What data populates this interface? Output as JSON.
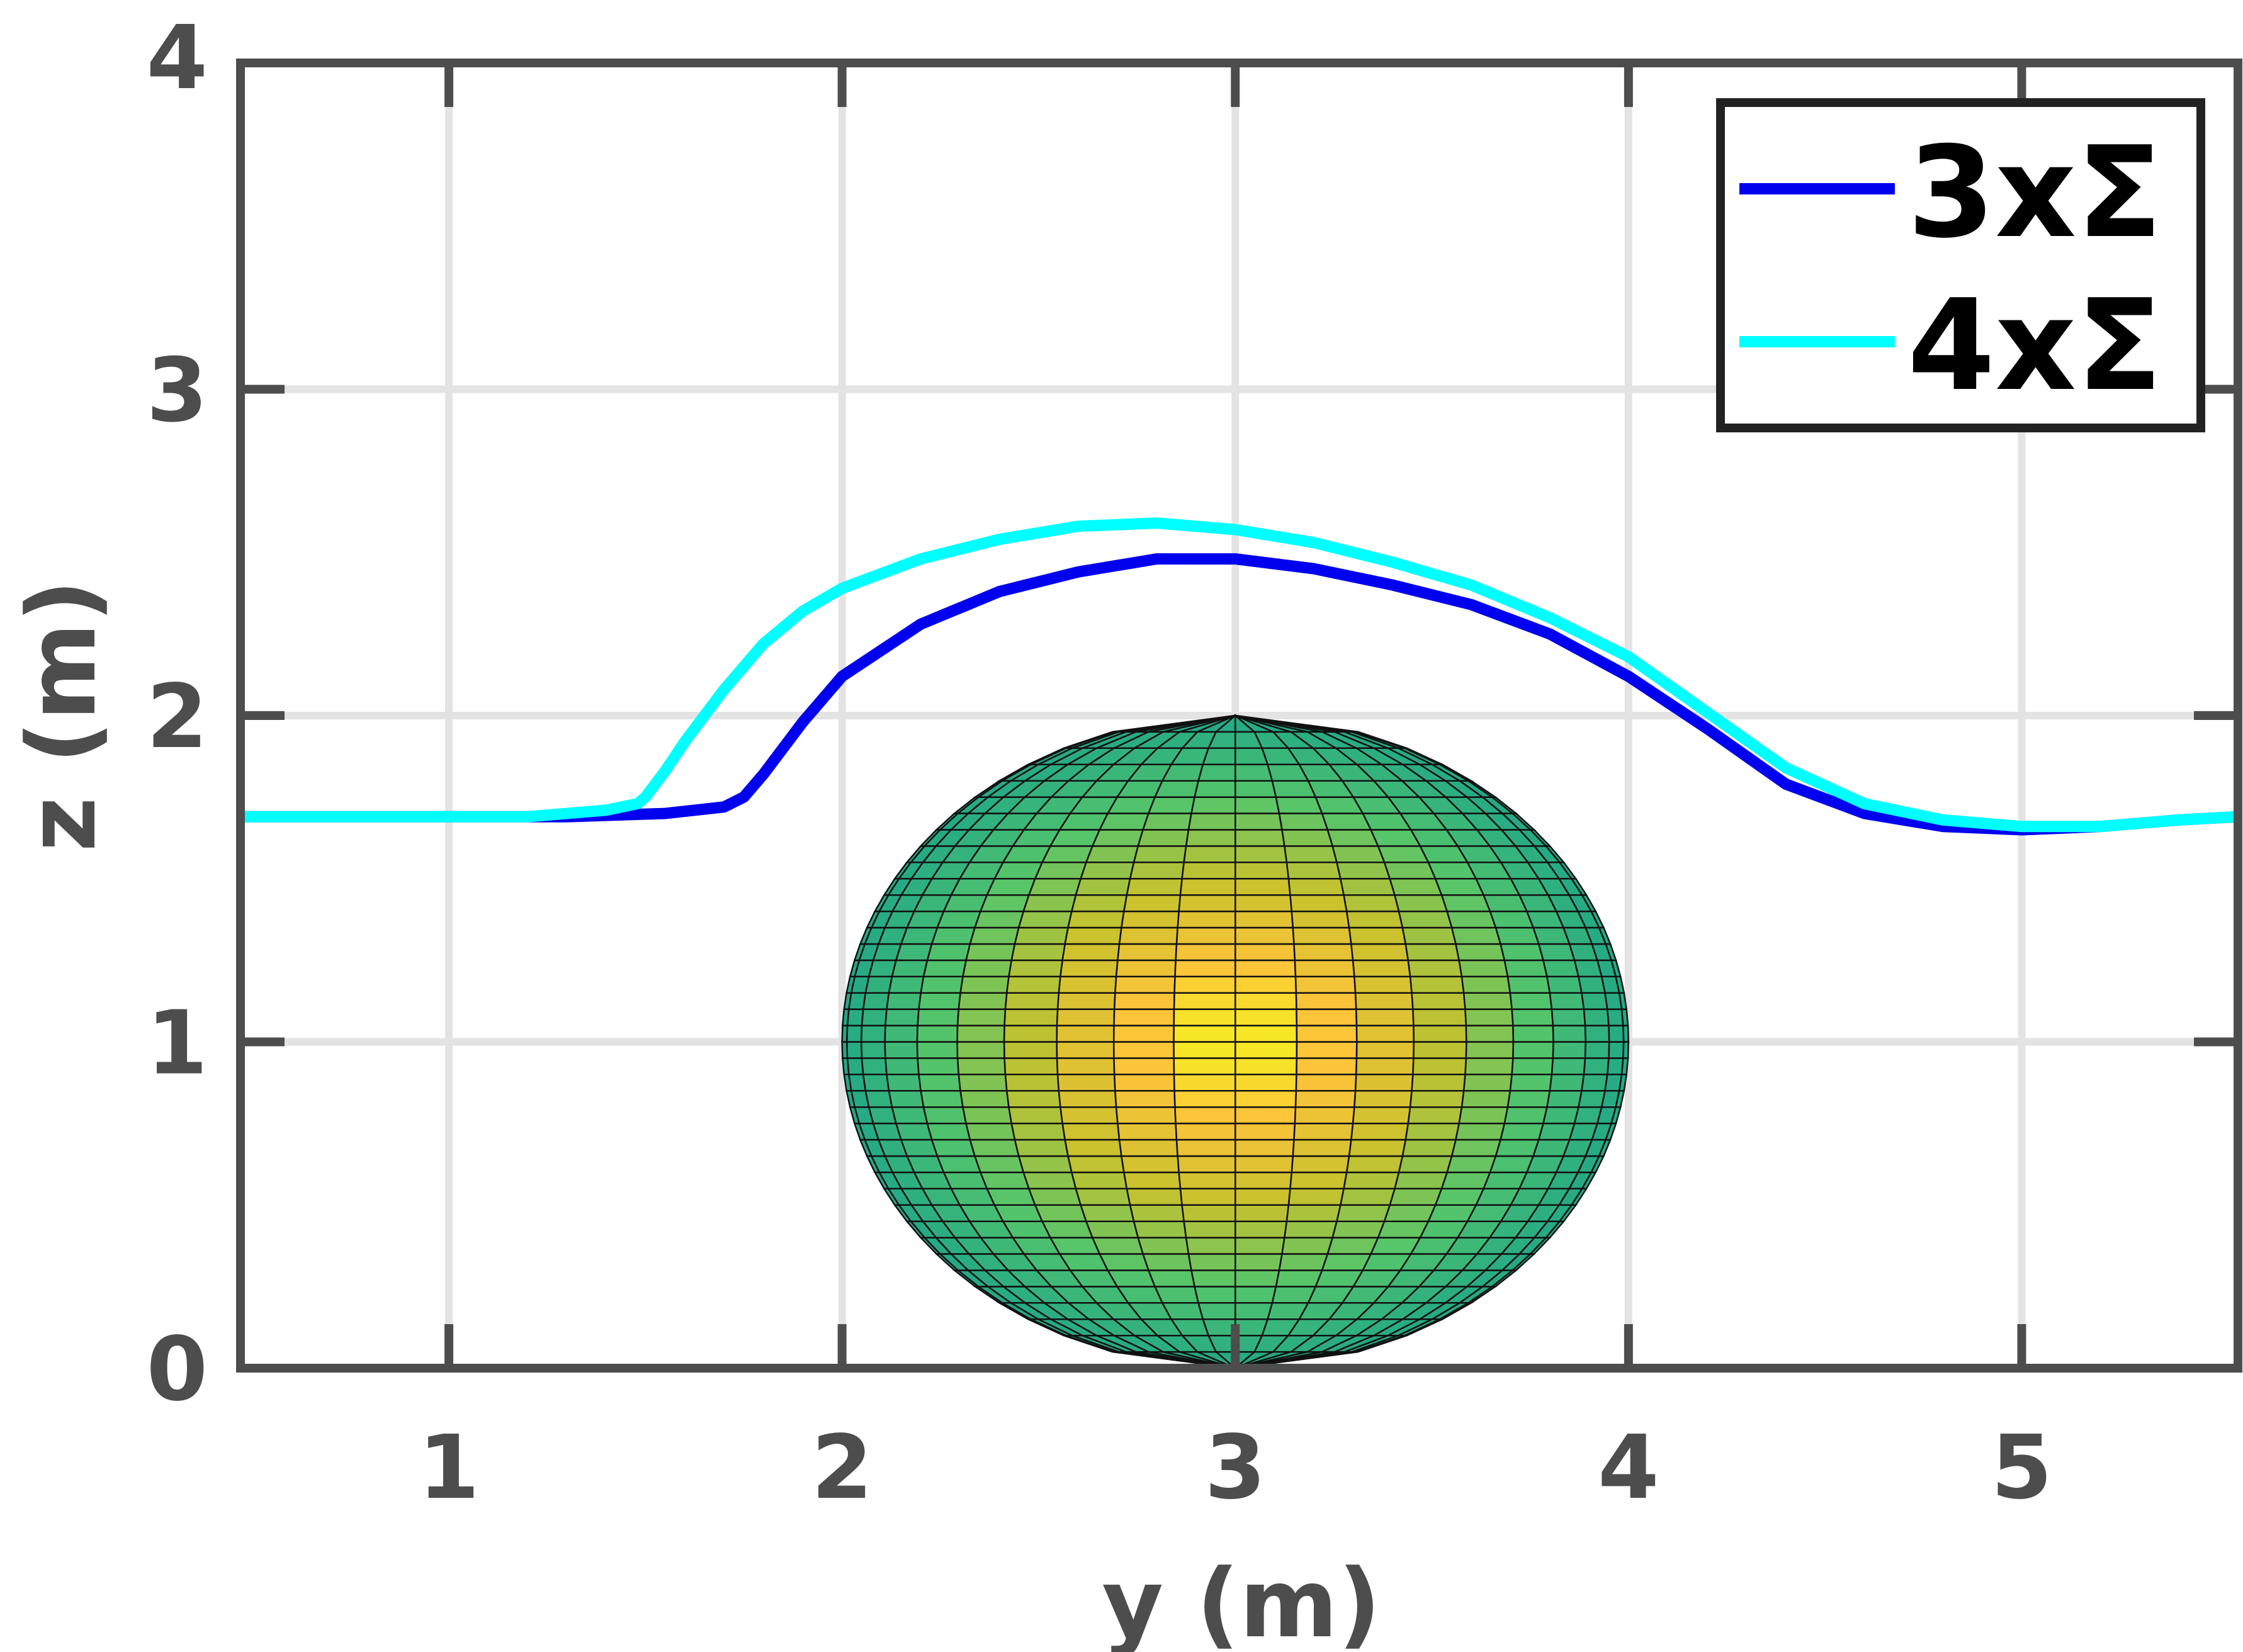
{
  "chart_data": {
    "type": "line",
    "title": "",
    "xlabel": "y (m)",
    "ylabel": "z (m)",
    "xlim": [
      0.47,
      5.55
    ],
    "ylim": [
      0,
      4
    ],
    "xticks": [
      1,
      2,
      3,
      4,
      5
    ],
    "xtick_labels": [
      "1",
      "2",
      "3",
      "4",
      "5"
    ],
    "yticks": [
      0,
      1,
      2,
      3,
      4
    ],
    "ytick_labels": [
      "0",
      "1",
      "2",
      "3",
      "4"
    ],
    "grid": true,
    "legend_position": "top-right",
    "series": [
      {
        "name": "3xΣ",
        "color": "#0000ee",
        "x": [
          0.47,
          1.0,
          1.3,
          1.55,
          1.7,
          1.75,
          1.8,
          1.9,
          2.0,
          2.2,
          2.4,
          2.6,
          2.8,
          3.0,
          3.2,
          3.4,
          3.6,
          3.8,
          4.0,
          4.2,
          4.4,
          4.6,
          4.8,
          5.0,
          5.2,
          5.4,
          5.55
        ],
        "y": [
          1.69,
          1.69,
          1.69,
          1.7,
          1.72,
          1.75,
          1.82,
          1.98,
          2.12,
          2.28,
          2.38,
          2.44,
          2.48,
          2.48,
          2.45,
          2.4,
          2.34,
          2.25,
          2.12,
          1.96,
          1.79,
          1.7,
          1.66,
          1.65,
          1.66,
          1.68,
          1.69
        ]
      },
      {
        "name": "4xΣ",
        "color": "#00ffff",
        "x": [
          0.47,
          1.0,
          1.2,
          1.4,
          1.48,
          1.5,
          1.55,
          1.6,
          1.7,
          1.8,
          1.9,
          2.0,
          2.2,
          2.4,
          2.6,
          2.8,
          3.0,
          3.2,
          3.4,
          3.6,
          3.8,
          4.0,
          4.2,
          4.4,
          4.6,
          4.8,
          5.0,
          5.2,
          5.4,
          5.55
        ],
        "y": [
          1.69,
          1.69,
          1.69,
          1.71,
          1.73,
          1.75,
          1.83,
          1.92,
          2.08,
          2.22,
          2.32,
          2.39,
          2.48,
          2.54,
          2.58,
          2.59,
          2.57,
          2.53,
          2.47,
          2.4,
          2.3,
          2.18,
          2.01,
          1.84,
          1.73,
          1.68,
          1.66,
          1.66,
          1.68,
          1.69
        ]
      }
    ],
    "overlay": {
      "type": "ellipsoid-mesh",
      "center_y": 3.0,
      "center_z": 1.0,
      "semi_axis_y": 1.0,
      "semi_axis_z": 1.0,
      "colormap": [
        "#f5f91c",
        "#fbc33a",
        "#c7c22d",
        "#55c56b",
        "#21a887"
      ]
    },
    "legend_entries": [
      "3xΣ",
      "4xΣ"
    ]
  }
}
